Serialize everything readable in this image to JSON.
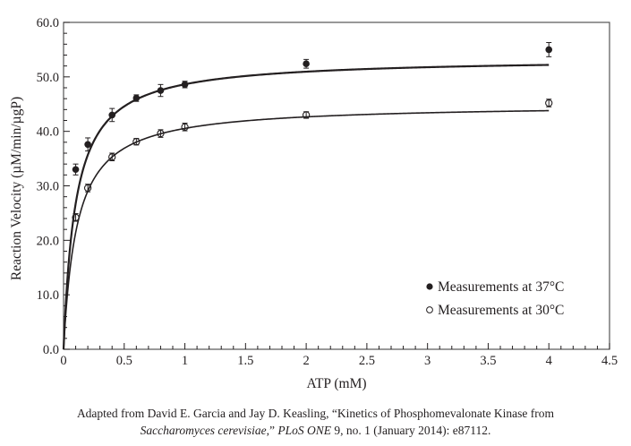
{
  "chart_data": {
    "type": "scatter",
    "xlabel": "ATP (mM)",
    "ylabel": "Reaction Velocity (µM/min/µgP)",
    "xlim": [
      0,
      4.5
    ],
    "ylim": [
      0,
      60
    ],
    "xticks": [
      "0",
      "0.5",
      "1",
      "1.5",
      "2",
      "2.5",
      "3",
      "3.5",
      "4",
      "4.5"
    ],
    "xtick_values": [
      0,
      0.5,
      1,
      1.5,
      2,
      2.5,
      3,
      3.5,
      4,
      4.5
    ],
    "yticks": [
      "0.0",
      "10.0",
      "20.0",
      "30.0",
      "40.0",
      "50.0",
      "60.0"
    ],
    "ytick_values": [
      0,
      10,
      20,
      30,
      40,
      50,
      60
    ],
    "x_minor_step": 0.1,
    "y_minor_step": 2,
    "grid": false,
    "legend_position": "bottom-right",
    "series": [
      {
        "name": "Measurements at 37°C",
        "marker": "filled-circle",
        "x": [
          0.1,
          0.2,
          0.4,
          0.6,
          0.8,
          1,
          2,
          4
        ],
        "y": [
          33.0,
          37.6,
          43.0,
          46.1,
          47.5,
          48.6,
          52.4,
          55.0
        ],
        "error": [
          1.0,
          1.2,
          1.2,
          0.6,
          1.1,
          0.6,
          0.8,
          1.3
        ],
        "fit": {
          "model": "michaelis-menten",
          "vmax": 53.5,
          "km": 0.1,
          "x_range": [
            0,
            4
          ]
        }
      },
      {
        "name": "Measurements at 30°C",
        "marker": "open-circle",
        "x": [
          0.1,
          0.2,
          0.4,
          0.6,
          0.8,
          1,
          2,
          4
        ],
        "y": [
          24.2,
          29.6,
          35.3,
          38.1,
          39.6,
          40.8,
          43.0,
          45.2
        ],
        "error": [
          0.7,
          0.7,
          0.7,
          0.6,
          0.7,
          0.7,
          0.6,
          0.7
        ],
        "fit": {
          "model": "michaelis-menten",
          "vmax": 45.0,
          "km": 0.11,
          "x_range": [
            0,
            4
          ]
        }
      }
    ]
  },
  "caption": {
    "line1": "Adapted from David E. Garcia and Jay D. Keasling, “Kinetics of Phosphomevalonate Kinase from",
    "species": "Saccharomyces cerevisiae",
    "mid": ",” ",
    "journal": "PLoS ONE",
    "rest": " 9, no. 1 (January 2014): e87112."
  }
}
